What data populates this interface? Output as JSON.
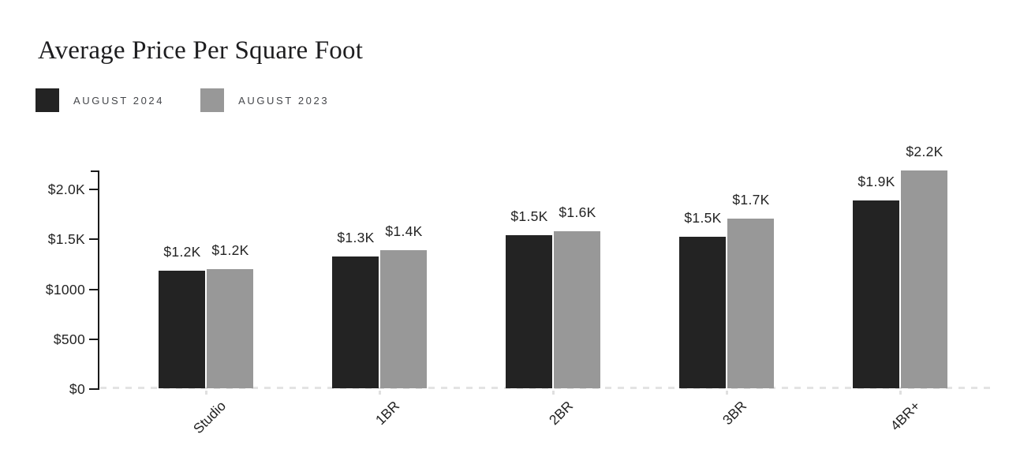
{
  "title": "Average Price Per Square Foot",
  "legend": {
    "items": [
      {
        "label": "AUGUST 2024",
        "color": "#232323"
      },
      {
        "label": "AUGUST 2023",
        "color": "#989898"
      }
    ]
  },
  "colors": {
    "background": "#ffffff",
    "axis": "#1a1a1a",
    "baseline_dash": "#e3e3e3",
    "text_dark": "#232323",
    "legend_text": "#45474b",
    "category_subtick": "#e0e0e0"
  },
  "chart_data": {
    "type": "bar",
    "title": "Average Price Per Square Foot",
    "categories": [
      "Studio",
      "1BR",
      "2BR",
      "3BR",
      "4BR+"
    ],
    "series": [
      {
        "name": "AUGUST 2024",
        "color": "#232323",
        "values": [
          1180,
          1320,
          1530,
          1520,
          1880
        ],
        "labels": [
          "$1.2K",
          "$1.3K",
          "$1.5K",
          "$1.5K",
          "$1.9K"
        ]
      },
      {
        "name": "AUGUST 2023",
        "color": "#989898",
        "values": [
          1190,
          1380,
          1570,
          1700,
          2180
        ],
        "labels": [
          "$1.2K",
          "$1.4K",
          "$1.6K",
          "$1.7K",
          "$2.2K"
        ]
      }
    ],
    "xlabel": "",
    "ylabel": "",
    "ylim": [
      0,
      2000
    ],
    "y_ticks": [
      {
        "value": 0,
        "label": "$0"
      },
      {
        "value": 500,
        "label": "$500"
      },
      {
        "value": 1000,
        "label": "$1000"
      },
      {
        "value": 1500,
        "label": "$1.5K"
      },
      {
        "value": 2000,
        "label": "$2.0K"
      }
    ],
    "grid": false,
    "legend_position": "top-left"
  }
}
